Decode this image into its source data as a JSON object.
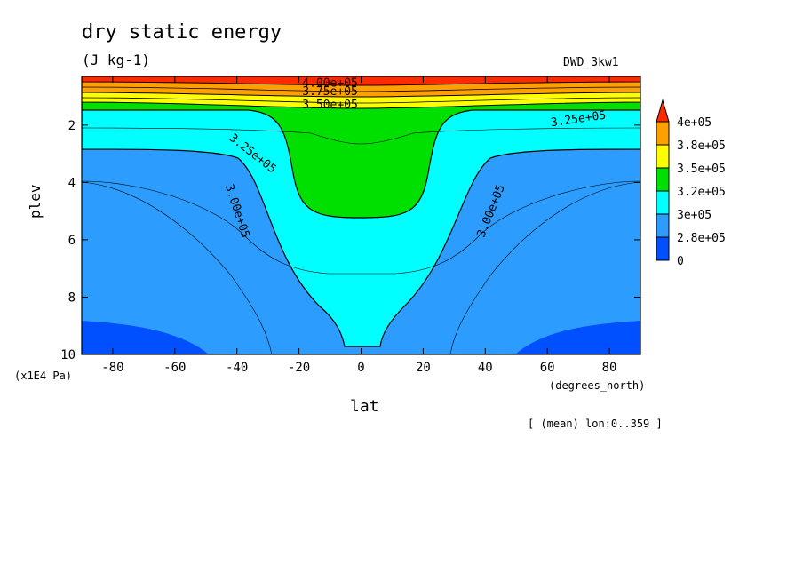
{
  "chart_data": {
    "type": "contour",
    "title": "dry static energy",
    "units": "(J kg-1)",
    "dataset": "DWD_3kw1",
    "xlabel": "lat",
    "x_units": "(degrees_north)",
    "ylabel": "plev",
    "y_units": "(x1E4 Pa)",
    "note": "[ (mean) lon:0..359 ]",
    "xlim": [
      -90,
      90
    ],
    "ylim": [
      10,
      0.3
    ],
    "y_inverted": true,
    "x_ticks": [
      -80,
      -60,
      -40,
      -20,
      0,
      20,
      40,
      60,
      80
    ],
    "y_ticks": [
      2,
      4,
      6,
      8,
      10
    ],
    "legend": {
      "labels": [
        "4e+05",
        "3.8e+05",
        "3.5e+05",
        "3.2e+05",
        "3e+05",
        "2.8e+05",
        "0"
      ],
      "colors": [
        "#ff2a00",
        "#ff9f00",
        "#ffff00",
        "#00e000",
        "#00ffff",
        "#2c9cff",
        "#0050ff"
      ]
    },
    "contour_labels": [
      {
        "text": "4.00e+05",
        "lat": -10,
        "plev": 0.55
      },
      {
        "text": "3.75e+05",
        "lat": -10,
        "plev": 0.85
      },
      {
        "text": "3.50e+05",
        "lat": -10,
        "plev": 1.3
      },
      {
        "text": "3.25e+05",
        "lat": 70,
        "plev": 1.8
      },
      {
        "text": "3.25e+05",
        "lat": -35,
        "plev": 3.0
      },
      {
        "text": "3.00e+05",
        "lat": -40,
        "plev": 5.0
      },
      {
        "text": "3.00e+05",
        "lat": 42,
        "plev": 5.0
      }
    ]
  }
}
